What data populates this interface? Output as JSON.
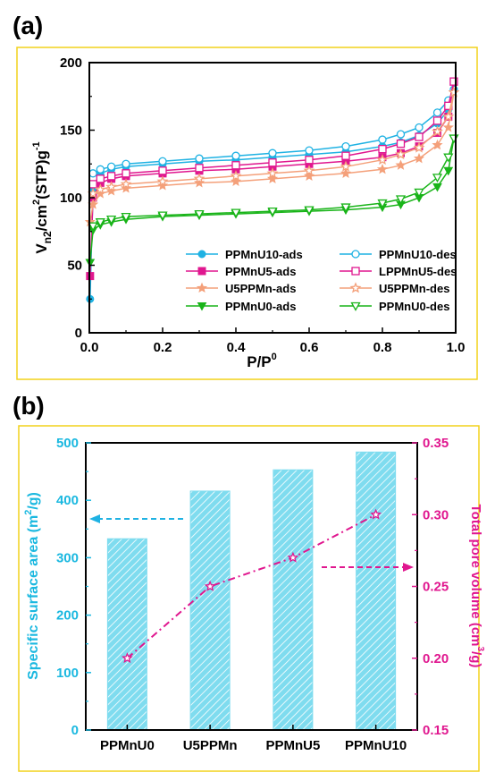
{
  "panels": {
    "a": {
      "label": "(a)"
    },
    "b": {
      "label": "(b)"
    }
  },
  "colors": {
    "frame": "#f2d21c",
    "cyan": "#1fb2e3",
    "magenta": "#e0178f",
    "salmon": "#f4a07a",
    "green": "#19b419",
    "axis_right": "#e0178f",
    "axis_left": "#1ab8e0",
    "bar_fill": "#7fdcef"
  },
  "chart_data": [
    {
      "type": "line",
      "xlabel": "P/P",
      "xlabel_sup": "0",
      "ylabel": "V",
      "ylabel_sub": "n2",
      "ylabel_rest": "/cm",
      "ylabel_sup": "2",
      "ylabel_tail": "(STP)g",
      "ylabel_tail_sup": "-1",
      "xlim": [
        0.0,
        1.0
      ],
      "ylim": [
        0,
        200
      ],
      "xticks": [
        "0.0",
        "0.2",
        "0.4",
        "0.6",
        "0.8",
        "1.0"
      ],
      "yticks": [
        "0",
        "50",
        "100",
        "150",
        "200"
      ],
      "legend_position": "bottom-right",
      "series": [
        {
          "name": "PPMnU10-ads",
          "color": "#1fb2e3",
          "marker": "circle-filled",
          "x": [
            0.002,
            0.01,
            0.03,
            0.06,
            0.1,
            0.2,
            0.3,
            0.4,
            0.5,
            0.6,
            0.7,
            0.8,
            0.85,
            0.9,
            0.95,
            0.98,
            0.995
          ],
          "y": [
            25,
            105,
            118,
            121,
            123,
            125,
            127,
            128,
            130,
            132,
            134,
            138,
            141,
            146,
            155,
            165,
            180
          ]
        },
        {
          "name": "PPMnU10-des",
          "color": "#1fb2e3",
          "marker": "circle-open",
          "x": [
            0.995,
            0.98,
            0.95,
            0.9,
            0.85,
            0.8,
            0.7,
            0.6,
            0.5,
            0.4,
            0.3,
            0.2,
            0.1,
            0.06,
            0.03,
            0.01
          ],
          "y": [
            180,
            172,
            163,
            152,
            147,
            143,
            138,
            135,
            133,
            131,
            129,
            127,
            125,
            123,
            121,
            118
          ]
        },
        {
          "name": "PPMnU5-ads",
          "color": "#e0178f",
          "marker": "square-filled",
          "x": [
            0.002,
            0.01,
            0.03,
            0.06,
            0.1,
            0.2,
            0.3,
            0.4,
            0.5,
            0.6,
            0.7,
            0.8,
            0.85,
            0.9,
            0.95,
            0.98,
            0.995
          ],
          "y": [
            42,
            100,
            111,
            114,
            116,
            118,
            120,
            121,
            123,
            125,
            127,
            130,
            133,
            138,
            148,
            160,
            186
          ]
        },
        {
          "name": "LPPMnU5-des",
          "color": "#e0178f",
          "marker": "square-open",
          "x": [
            0.995,
            0.98,
            0.95,
            0.9,
            0.85,
            0.8,
            0.7,
            0.6,
            0.5,
            0.4,
            0.3,
            0.2,
            0.1,
            0.06,
            0.03,
            0.01
          ],
          "y": [
            186,
            168,
            157,
            145,
            140,
            136,
            131,
            128,
            126,
            124,
            122,
            120,
            118,
            116,
            114,
            110
          ]
        },
        {
          "name": "U5PPMn-ads",
          "color": "#f4a07a",
          "marker": "star-filled",
          "x": [
            0.002,
            0.01,
            0.03,
            0.06,
            0.1,
            0.2,
            0.3,
            0.4,
            0.5,
            0.6,
            0.7,
            0.8,
            0.85,
            0.9,
            0.95,
            0.98,
            0.995
          ],
          "y": [
            82,
            95,
            103,
            105,
            107,
            109,
            111,
            112,
            114,
            116,
            118,
            121,
            124,
            129,
            139,
            152,
            178
          ]
        },
        {
          "name": "U5PPMn-des",
          "color": "#f4a07a",
          "marker": "star-open",
          "x": [
            0.995,
            0.98,
            0.95,
            0.9,
            0.85,
            0.8,
            0.7,
            0.6,
            0.5,
            0.4,
            0.3,
            0.2,
            0.1,
            0.06,
            0.03,
            0.01
          ],
          "y": [
            178,
            160,
            149,
            137,
            132,
            128,
            123,
            120,
            118,
            116,
            114,
            112,
            110,
            108,
            106,
            103
          ]
        },
        {
          "name": "PPMnU0-ads",
          "color": "#19b419",
          "marker": "triangle-down-filled",
          "x": [
            0.002,
            0.01,
            0.03,
            0.06,
            0.1,
            0.2,
            0.3,
            0.4,
            0.5,
            0.6,
            0.7,
            0.8,
            0.85,
            0.9,
            0.95,
            0.98,
            0.995
          ],
          "y": [
            52,
            76,
            80,
            82,
            84,
            86,
            87,
            88,
            89,
            90,
            91,
            93,
            95,
            100,
            108,
            120,
            144
          ]
        },
        {
          "name": "PPMnU0-des",
          "color": "#19b419",
          "marker": "triangle-down-open",
          "x": [
            0.995,
            0.98,
            0.95,
            0.9,
            0.85,
            0.8,
            0.7,
            0.6,
            0.5,
            0.4,
            0.3,
            0.2,
            0.1,
            0.06,
            0.03,
            0.01
          ],
          "y": [
            144,
            130,
            115,
            104,
            99,
            96,
            93,
            91,
            90,
            89,
            88,
            87,
            86,
            84,
            82,
            79
          ]
        }
      ]
    },
    {
      "type": "bar",
      "categories": [
        "PPMnU0",
        "U5PPMn",
        "PPMnU5",
        "PPMnU10"
      ],
      "ylabel": "Specific surface area (m",
      "ylabel_sup": "2",
      "ylabel_tail": "/g)",
      "ylim": [
        0,
        500
      ],
      "yticks": [
        "0",
        "100",
        "200",
        "300",
        "400",
        "500"
      ],
      "values": [
        333,
        416,
        453,
        484
      ],
      "y2label": "Total pore volume (cm",
      "y2label_sup": "3",
      "y2label_tail": "/g)",
      "y2lim": [
        0.15,
        0.35
      ],
      "y2ticks": [
        "0.15",
        "0.20",
        "0.25",
        "0.30",
        "0.35"
      ],
      "values2": [
        0.2,
        0.25,
        0.27,
        0.3
      ],
      "bar_fill": "hatched"
    }
  ]
}
